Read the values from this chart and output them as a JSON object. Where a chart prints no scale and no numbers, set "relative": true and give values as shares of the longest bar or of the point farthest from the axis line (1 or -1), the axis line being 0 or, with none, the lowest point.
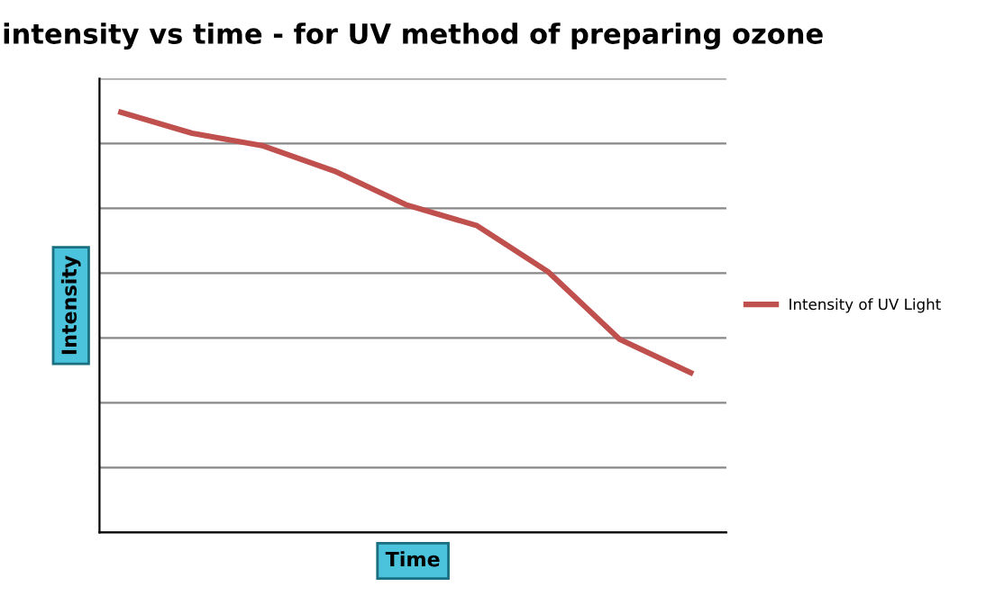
{
  "chart_data": {
    "type": "line",
    "title": "intensity vs time - for UV method of preparing ozone",
    "xlabel": "Time",
    "ylabel": "Intensity",
    "relative": true,
    "grid": "y",
    "legend": "right",
    "marker": "none",
    "line_style": "solid",
    "categories": [
      null,
      null,
      null,
      null,
      null,
      null,
      null,
      null,
      null
    ],
    "series": [
      {
        "name": "Intensity of UV Light",
        "color": "#c0504d",
        "values": [
          1,
          0.95,
          0.92,
          0.86,
          0.78,
          0.73,
          0.62,
          0.46,
          0.38
        ]
      }
    ]
  }
}
